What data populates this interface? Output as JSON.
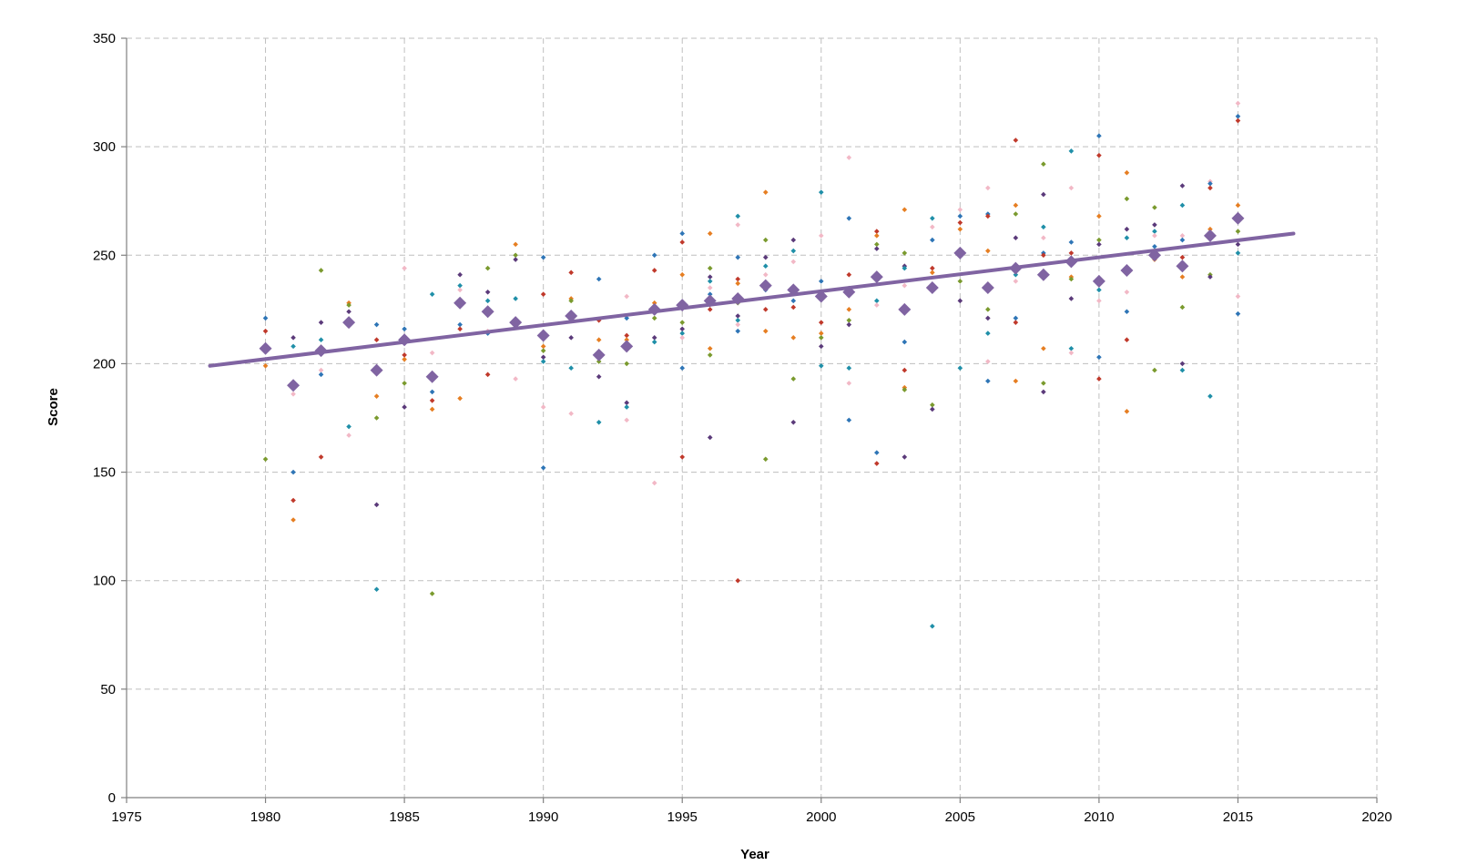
{
  "chart_data": {
    "type": "scatter",
    "title": "",
    "xlabel": "Year",
    "ylabel": "Score",
    "xlim": [
      1975,
      2020
    ],
    "ylim": [
      0,
      350
    ],
    "x_ticks": [
      1975,
      1980,
      1985,
      1990,
      1995,
      2000,
      2005,
      2010,
      2015,
      2020
    ],
    "y_ticks": [
      0,
      50,
      100,
      150,
      200,
      250,
      300,
      350
    ],
    "grid": true,
    "legend": "none",
    "series_colors": [
      "#2e75b6",
      "#c0392b",
      "#e67e22",
      "#7a9a2e",
      "#5b3a7a",
      "#1f8fa8",
      "#f2b8c6"
    ],
    "mean_color": "#8064a2",
    "trend_color": "#8064a2",
    "points": [
      [
        1980,
        221
      ],
      [
        1980,
        215
      ],
      [
        1980,
        199
      ],
      [
        1980,
        156
      ],
      [
        1981,
        212
      ],
      [
        1981,
        208
      ],
      [
        1981,
        186
      ],
      [
        1981,
        150
      ],
      [
        1981,
        137
      ],
      [
        1981,
        128
      ],
      [
        1982,
        243
      ],
      [
        1982,
        219
      ],
      [
        1982,
        211
      ],
      [
        1982,
        197
      ],
      [
        1982,
        195
      ],
      [
        1982,
        157
      ],
      [
        1983,
        228
      ],
      [
        1983,
        227
      ],
      [
        1983,
        224
      ],
      [
        1983,
        171
      ],
      [
        1983,
        167
      ],
      [
        1984,
        218
      ],
      [
        1984,
        211
      ],
      [
        1984,
        185
      ],
      [
        1984,
        175
      ],
      [
        1984,
        135
      ],
      [
        1984,
        96
      ],
      [
        1985,
        244
      ],
      [
        1985,
        216
      ],
      [
        1985,
        204
      ],
      [
        1985,
        202
      ],
      [
        1985,
        191
      ],
      [
        1985,
        180
      ],
      [
        1986,
        232
      ],
      [
        1986,
        205
      ],
      [
        1986,
        187
      ],
      [
        1986,
        183
      ],
      [
        1986,
        179
      ],
      [
        1986,
        94
      ],
      [
        1987,
        241
      ],
      [
        1987,
        236
      ],
      [
        1987,
        234
      ],
      [
        1987,
        218
      ],
      [
        1987,
        216
      ],
      [
        1987,
        184
      ],
      [
        1988,
        244
      ],
      [
        1988,
        233
      ],
      [
        1988,
        229
      ],
      [
        1988,
        215
      ],
      [
        1988,
        214
      ],
      [
        1988,
        195
      ],
      [
        1989,
        255
      ],
      [
        1989,
        250
      ],
      [
        1989,
        248
      ],
      [
        1989,
        230
      ],
      [
        1989,
        193
      ],
      [
        1990,
        249
      ],
      [
        1990,
        232
      ],
      [
        1990,
        208
      ],
      [
        1990,
        206
      ],
      [
        1990,
        203
      ],
      [
        1990,
        201
      ],
      [
        1990,
        180
      ],
      [
        1990,
        152
      ],
      [
        1991,
        242
      ],
      [
        1991,
        230
      ],
      [
        1991,
        229
      ],
      [
        1991,
        212
      ],
      [
        1991,
        198
      ],
      [
        1991,
        177
      ],
      [
        1992,
        239
      ],
      [
        1992,
        220
      ],
      [
        1992,
        211
      ],
      [
        1992,
        201
      ],
      [
        1992,
        194
      ],
      [
        1992,
        173
      ],
      [
        1993,
        231
      ],
      [
        1993,
        221
      ],
      [
        1993,
        213
      ],
      [
        1993,
        211
      ],
      [
        1993,
        200
      ],
      [
        1993,
        182
      ],
      [
        1993,
        180
      ],
      [
        1993,
        174
      ],
      [
        1994,
        250
      ],
      [
        1994,
        243
      ],
      [
        1994,
        228
      ],
      [
        1994,
        221
      ],
      [
        1994,
        212
      ],
      [
        1994,
        210
      ],
      [
        1994,
        145
      ],
      [
        1995,
        260
      ],
      [
        1995,
        256
      ],
      [
        1995,
        241
      ],
      [
        1995,
        219
      ],
      [
        1995,
        216
      ],
      [
        1995,
        214
      ],
      [
        1995,
        212
      ],
      [
        1995,
        198
      ],
      [
        1995,
        157
      ],
      [
        1996,
        260
      ],
      [
        1996,
        244
      ],
      [
        1996,
        240
      ],
      [
        1996,
        238
      ],
      [
        1996,
        235
      ],
      [
        1996,
        232
      ],
      [
        1996,
        225
      ],
      [
        1996,
        207
      ],
      [
        1996,
        204
      ],
      [
        1996,
        166
      ],
      [
        1997,
        268
      ],
      [
        1997,
        264
      ],
      [
        1997,
        249
      ],
      [
        1997,
        239
      ],
      [
        1997,
        237
      ],
      [
        1997,
        228
      ],
      [
        1997,
        222
      ],
      [
        1997,
        220
      ],
      [
        1997,
        218
      ],
      [
        1997,
        215
      ],
      [
        1997,
        100
      ],
      [
        1998,
        279
      ],
      [
        1998,
        257
      ],
      [
        1998,
        249
      ],
      [
        1998,
        245
      ],
      [
        1998,
        241
      ],
      [
        1998,
        234
      ],
      [
        1998,
        225
      ],
      [
        1998,
        215
      ],
      [
        1998,
        156
      ],
      [
        1999,
        257
      ],
      [
        1999,
        252
      ],
      [
        1999,
        247
      ],
      [
        1999,
        229
      ],
      [
        1999,
        226
      ],
      [
        1999,
        212
      ],
      [
        1999,
        193
      ],
      [
        1999,
        173
      ],
      [
        2000,
        279
      ],
      [
        2000,
        259
      ],
      [
        2000,
        238
      ],
      [
        2000,
        219
      ],
      [
        2000,
        214
      ],
      [
        2000,
        212
      ],
      [
        2000,
        208
      ],
      [
        2000,
        199
      ],
      [
        2001,
        295
      ],
      [
        2001,
        267
      ],
      [
        2001,
        241
      ],
      [
        2001,
        225
      ],
      [
        2001,
        220
      ],
      [
        2001,
        218
      ],
      [
        2001,
        198
      ],
      [
        2001,
        191
      ],
      [
        2001,
        174
      ],
      [
        2002,
        261
      ],
      [
        2002,
        259
      ],
      [
        2002,
        255
      ],
      [
        2002,
        253
      ],
      [
        2002,
        229
      ],
      [
        2002,
        227
      ],
      [
        2002,
        159
      ],
      [
        2002,
        154
      ],
      [
        2003,
        271
      ],
      [
        2003,
        251
      ],
      [
        2003,
        245
      ],
      [
        2003,
        244
      ],
      [
        2003,
        236
      ],
      [
        2003,
        210
      ],
      [
        2003,
        197
      ],
      [
        2003,
        189
      ],
      [
        2003,
        188
      ],
      [
        2003,
        157
      ],
      [
        2004,
        267
      ],
      [
        2004,
        263
      ],
      [
        2004,
        257
      ],
      [
        2004,
        244
      ],
      [
        2004,
        242
      ],
      [
        2004,
        181
      ],
      [
        2004,
        179
      ],
      [
        2004,
        79
      ],
      [
        2005,
        271
      ],
      [
        2005,
        268
      ],
      [
        2005,
        265
      ],
      [
        2005,
        262
      ],
      [
        2005,
        238
      ],
      [
        2005,
        229
      ],
      [
        2005,
        198
      ],
      [
        2006,
        281
      ],
      [
        2006,
        269
      ],
      [
        2006,
        268
      ],
      [
        2006,
        252
      ],
      [
        2006,
        225
      ],
      [
        2006,
        221
      ],
      [
        2006,
        214
      ],
      [
        2006,
        201
      ],
      [
        2006,
        192
      ],
      [
        2007,
        303
      ],
      [
        2007,
        273
      ],
      [
        2007,
        269
      ],
      [
        2007,
        258
      ],
      [
        2007,
        241
      ],
      [
        2007,
        238
      ],
      [
        2007,
        221
      ],
      [
        2007,
        219
      ],
      [
        2007,
        192
      ],
      [
        2008,
        292
      ],
      [
        2008,
        278
      ],
      [
        2008,
        263
      ],
      [
        2008,
        258
      ],
      [
        2008,
        251
      ],
      [
        2008,
        250
      ],
      [
        2008,
        207
      ],
      [
        2008,
        191
      ],
      [
        2008,
        187
      ],
      [
        2009,
        298
      ],
      [
        2009,
        281
      ],
      [
        2009,
        256
      ],
      [
        2009,
        251
      ],
      [
        2009,
        240
      ],
      [
        2009,
        239
      ],
      [
        2009,
        230
      ],
      [
        2009,
        207
      ],
      [
        2009,
        205
      ],
      [
        2010,
        305
      ],
      [
        2010,
        296
      ],
      [
        2010,
        268
      ],
      [
        2010,
        257
      ],
      [
        2010,
        255
      ],
      [
        2010,
        234
      ],
      [
        2010,
        229
      ],
      [
        2010,
        203
      ],
      [
        2010,
        193
      ],
      [
        2011,
        288
      ],
      [
        2011,
        276
      ],
      [
        2011,
        262
      ],
      [
        2011,
        258
      ],
      [
        2011,
        233
      ],
      [
        2011,
        224
      ],
      [
        2011,
        211
      ],
      [
        2011,
        178
      ],
      [
        2012,
        272
      ],
      [
        2012,
        264
      ],
      [
        2012,
        261
      ],
      [
        2012,
        259
      ],
      [
        2012,
        254
      ],
      [
        2012,
        251
      ],
      [
        2012,
        248
      ],
      [
        2012,
        197
      ],
      [
        2013,
        282
      ],
      [
        2013,
        273
      ],
      [
        2013,
        259
      ],
      [
        2013,
        257
      ],
      [
        2013,
        249
      ],
      [
        2013,
        240
      ],
      [
        2013,
        226
      ],
      [
        2013,
        200
      ],
      [
        2013,
        197
      ],
      [
        2014,
        284
      ],
      [
        2014,
        283
      ],
      [
        2014,
        281
      ],
      [
        2014,
        262
      ],
      [
        2014,
        241
      ],
      [
        2014,
        240
      ],
      [
        2014,
        185
      ],
      [
        2015,
        320
      ],
      [
        2015,
        314
      ],
      [
        2015,
        312
      ],
      [
        2015,
        273
      ],
      [
        2015,
        261
      ],
      [
        2015,
        255
      ],
      [
        2015,
        251
      ],
      [
        2015,
        231
      ],
      [
        2015,
        223
      ]
    ],
    "means": [
      [
        1980,
        207
      ],
      [
        1981,
        190
      ],
      [
        1982,
        206
      ],
      [
        1983,
        219
      ],
      [
        1984,
        197
      ],
      [
        1985,
        211
      ],
      [
        1986,
        194
      ],
      [
        1987,
        228
      ],
      [
        1988,
        224
      ],
      [
        1989,
        219
      ],
      [
        1990,
        213
      ],
      [
        1991,
        222
      ],
      [
        1992,
        204
      ],
      [
        1993,
        208
      ],
      [
        1994,
        225
      ],
      [
        1995,
        227
      ],
      [
        1996,
        229
      ],
      [
        1997,
        230
      ],
      [
        1998,
        236
      ],
      [
        1999,
        234
      ],
      [
        2000,
        231
      ],
      [
        2001,
        233
      ],
      [
        2002,
        240
      ],
      [
        2003,
        225
      ],
      [
        2004,
        235
      ],
      [
        2005,
        251
      ],
      [
        2006,
        235
      ],
      [
        2007,
        244
      ],
      [
        2008,
        241
      ],
      [
        2009,
        247
      ],
      [
        2010,
        238
      ],
      [
        2011,
        243
      ],
      [
        2012,
        250
      ],
      [
        2013,
        245
      ],
      [
        2014,
        259
      ],
      [
        2015,
        267
      ]
    ],
    "trend": {
      "x": [
        1978,
        2017
      ],
      "y": [
        199,
        260
      ]
    }
  }
}
